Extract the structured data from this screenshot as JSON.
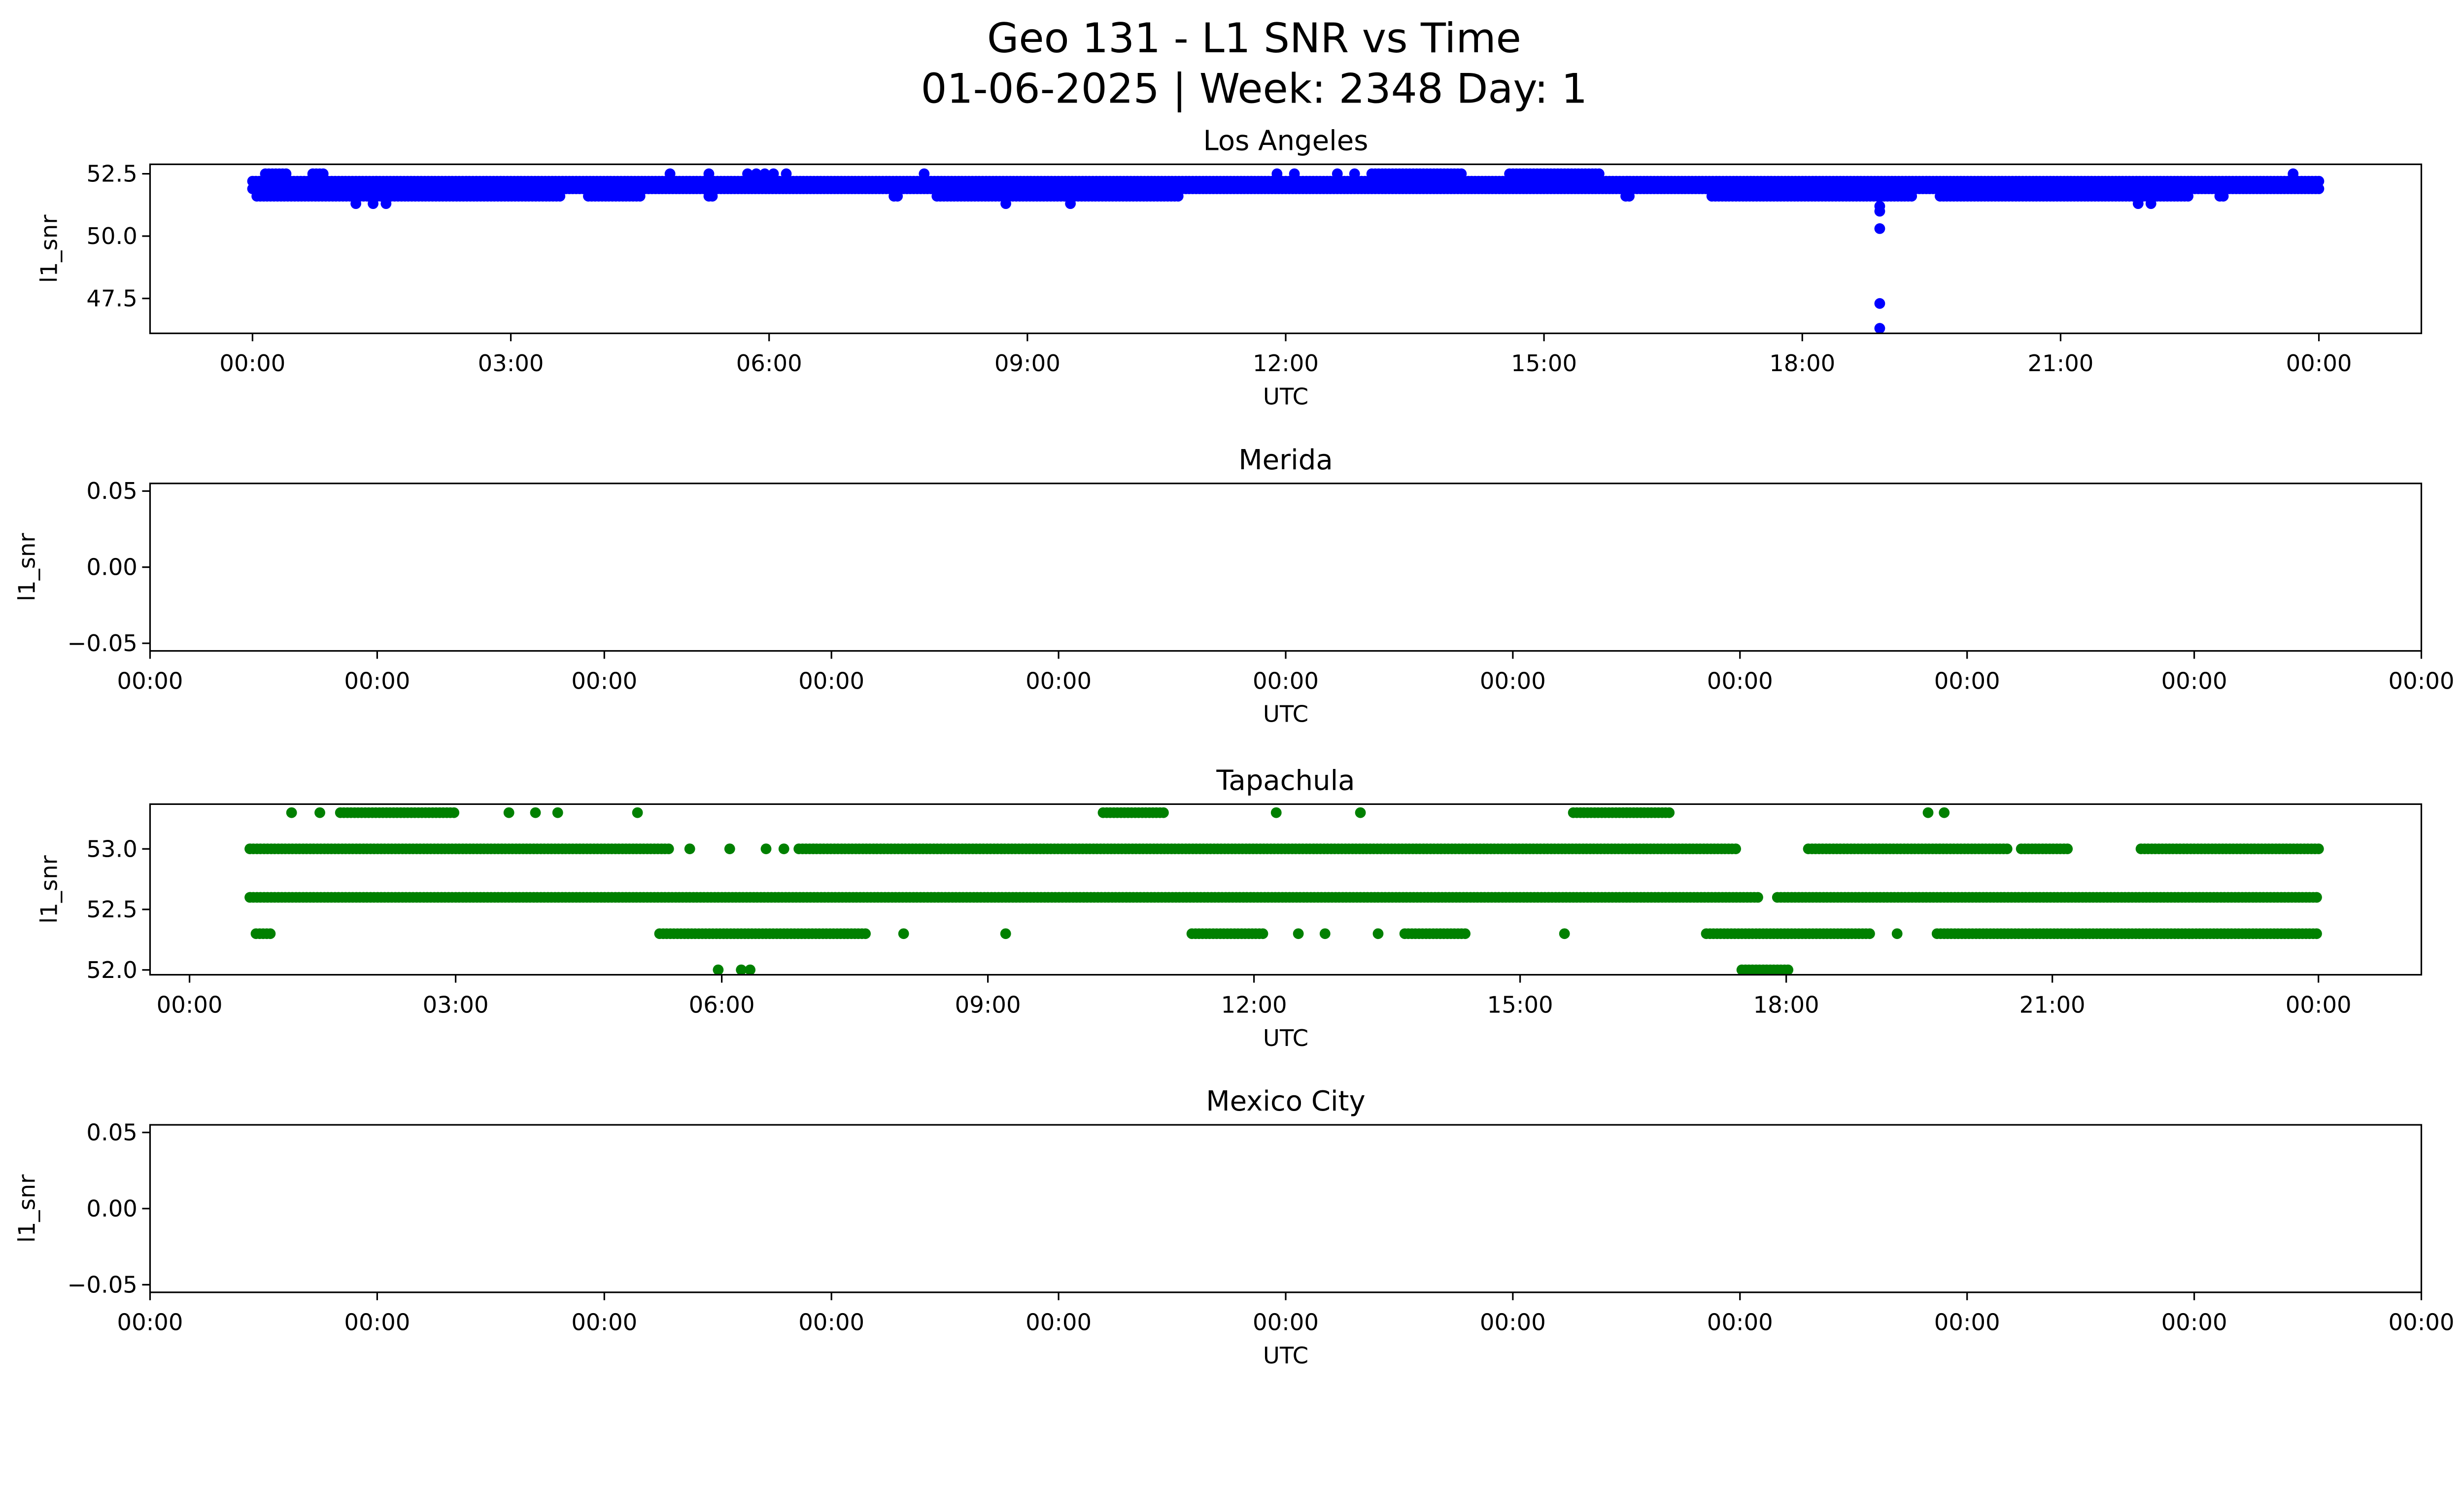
{
  "suptitle_line1": "Geo 131 - L1 SNR vs Time",
  "suptitle_line2": "01-06-2025 | Week: 2348 Day: 1",
  "chart_data": [
    {
      "type": "scatter",
      "title": "Los Angeles",
      "xlabel": "UTC",
      "ylabel": "l1_snr",
      "color": "#0000ff",
      "xlim": [
        -1.19,
        25.19
      ],
      "ylim": [
        46.1,
        52.88
      ],
      "xticks": [
        {
          "v": 0,
          "label": "00:00"
        },
        {
          "v": 3,
          "label": "03:00"
        },
        {
          "v": 6,
          "label": "06:00"
        },
        {
          "v": 9,
          "label": "09:00"
        },
        {
          "v": 12,
          "label": "12:00"
        },
        {
          "v": 15,
          "label": "15:00"
        },
        {
          "v": 18,
          "label": "18:00"
        },
        {
          "v": 21,
          "label": "21:00"
        },
        {
          "v": 24,
          "label": "00:00"
        }
      ],
      "yticks": [
        {
          "v": 47.5,
          "label": "47.5"
        },
        {
          "v": 50.0,
          "label": "50.0"
        },
        {
          "v": 52.5,
          "label": "52.5"
        }
      ],
      "runs": [
        {
          "y": 52.2,
          "ranges": [
            [
              0.0,
              24.0
            ]
          ]
        },
        {
          "y": 51.9,
          "ranges": [
            [
              0.0,
              24.0
            ]
          ]
        },
        {
          "y": 51.6,
          "ranges": [
            [
              0.05,
              3.6
            ],
            [
              3.9,
              4.5
            ],
            [
              5.3,
              5.35
            ],
            [
              7.45,
              7.5
            ],
            [
              7.95,
              10.75
            ],
            [
              15.95,
              16.0
            ],
            [
              16.95,
              19.3
            ],
            [
              19.6,
              22.5
            ],
            [
              22.85,
              22.9
            ]
          ]
        },
        {
          "y": 52.5,
          "ranges": [
            [
              0.15,
              0.4
            ],
            [
              0.7,
              0.85
            ],
            [
              13.0,
              14.05
            ],
            [
              14.6,
              15.65
            ]
          ]
        }
      ],
      "points": [
        [
          1.2,
          51.3
        ],
        [
          1.4,
          51.3
        ],
        [
          1.55,
          51.3
        ],
        [
          8.75,
          51.3
        ],
        [
          9.5,
          51.3
        ],
        [
          21.9,
          51.3
        ],
        [
          22.05,
          51.3
        ],
        [
          4.85,
          52.5
        ],
        [
          5.3,
          52.5
        ],
        [
          5.75,
          52.5
        ],
        [
          5.85,
          52.5
        ],
        [
          5.95,
          52.5
        ],
        [
          6.05,
          52.5
        ],
        [
          6.2,
          52.5
        ],
        [
          7.8,
          52.5
        ],
        [
          11.9,
          52.5
        ],
        [
          12.1,
          52.5
        ],
        [
          12.6,
          52.5
        ],
        [
          12.8,
          52.5
        ],
        [
          23.7,
          52.5
        ],
        [
          18.9,
          51.0
        ],
        [
          18.9,
          51.2
        ],
        [
          18.9,
          50.3
        ],
        [
          18.9,
          47.3
        ],
        [
          18.9,
          46.3
        ]
      ]
    },
    {
      "type": "scatter",
      "title": "Merida",
      "xlabel": "UTC",
      "ylabel": "l1_snr",
      "color": "#0000ff",
      "xlim": [
        0,
        10
      ],
      "ylim": [
        -0.055,
        0.055
      ],
      "xticks": [
        {
          "v": 0,
          "label": "00:00"
        },
        {
          "v": 1,
          "label": "00:00"
        },
        {
          "v": 2,
          "label": "00:00"
        },
        {
          "v": 3,
          "label": "00:00"
        },
        {
          "v": 4,
          "label": "00:00"
        },
        {
          "v": 5,
          "label": "00:00"
        },
        {
          "v": 6,
          "label": "00:00"
        },
        {
          "v": 7,
          "label": "00:00"
        },
        {
          "v": 8,
          "label": "00:00"
        },
        {
          "v": 9,
          "label": "00:00"
        },
        {
          "v": 10,
          "label": "00:00"
        }
      ],
      "yticks": [
        {
          "v": -0.05,
          "label": "−0.05"
        },
        {
          "v": 0.0,
          "label": "0.00"
        },
        {
          "v": 0.05,
          "label": "0.05"
        }
      ],
      "runs": [],
      "points": []
    },
    {
      "type": "scatter",
      "title": "Tapachula",
      "xlabel": "UTC",
      "ylabel": "l1_snr",
      "color": "#008000",
      "xlim": [
        -0.445,
        25.16
      ],
      "ylim": [
        51.96,
        53.37
      ],
      "xticks": [
        {
          "v": 0,
          "label": "00:00"
        },
        {
          "v": 3,
          "label": "03:00"
        },
        {
          "v": 6,
          "label": "06:00"
        },
        {
          "v": 9,
          "label": "09:00"
        },
        {
          "v": 12,
          "label": "12:00"
        },
        {
          "v": 15,
          "label": "15:00"
        },
        {
          "v": 18,
          "label": "18:00"
        },
        {
          "v": 21,
          "label": "21:00"
        },
        {
          "v": 24,
          "label": "00:00"
        }
      ],
      "yticks": [
        {
          "v": 52.0,
          "label": "52.0"
        },
        {
          "v": 52.5,
          "label": "52.5"
        },
        {
          "v": 53.0,
          "label": "53.0"
        }
      ],
      "runs": [
        {
          "y": 53.0,
          "ranges": [
            [
              0.68,
              5.43
            ],
            [
              6.87,
              17.45
            ],
            [
              18.25,
              20.5
            ],
            [
              20.65,
              21.2
            ],
            [
              22.0,
              24.0
            ]
          ]
        },
        {
          "y": 52.6,
          "ranges": [
            [
              0.68,
              17.7
            ],
            [
              17.9,
              24.0
            ]
          ]
        },
        {
          "y": 52.3,
          "ranges": [
            [
              0.75,
              0.93
            ],
            [
              5.3,
              7.65
            ],
            [
              11.3,
              12.1
            ],
            [
              13.7,
              14.4
            ],
            [
              17.1,
              18.95
            ],
            [
              19.7,
              24.0
            ]
          ]
        },
        {
          "y": 53.3,
          "ranges": [
            [
              1.7,
              3.0
            ],
            [
              10.3,
              11.0
            ],
            [
              15.6,
              16.7
            ]
          ]
        },
        {
          "y": 52.0,
          "ranges": [
            [
              17.5,
              18.05
            ]
          ]
        }
      ],
      "points": [
        [
          5.64,
          53.0
        ],
        [
          6.09,
          53.0
        ],
        [
          6.5,
          53.0
        ],
        [
          6.7,
          53.0
        ],
        [
          8.05,
          52.3
        ],
        [
          9.2,
          52.3
        ],
        [
          12.5,
          52.3
        ],
        [
          12.8,
          52.3
        ],
        [
          13.4,
          52.3
        ],
        [
          15.5,
          52.3
        ],
        [
          19.25,
          52.3
        ],
        [
          1.15,
          53.3
        ],
        [
          1.47,
          53.3
        ],
        [
          3.6,
          53.3
        ],
        [
          3.9,
          53.3
        ],
        [
          4.15,
          53.3
        ],
        [
          5.05,
          53.3
        ],
        [
          12.25,
          53.3
        ],
        [
          13.2,
          53.3
        ],
        [
          19.6,
          53.3
        ],
        [
          19.78,
          53.3
        ],
        [
          5.96,
          52.0
        ],
        [
          6.22,
          52.0
        ],
        [
          6.32,
          52.0
        ]
      ]
    },
    {
      "type": "scatter",
      "title": "Mexico City",
      "xlabel": "UTC",
      "ylabel": "l1_snr",
      "color": "#0000ff",
      "xlim": [
        0,
        10
      ],
      "ylim": [
        -0.055,
        0.055
      ],
      "xticks": [
        {
          "v": 0,
          "label": "00:00"
        },
        {
          "v": 1,
          "label": "00:00"
        },
        {
          "v": 2,
          "label": "00:00"
        },
        {
          "v": 3,
          "label": "00:00"
        },
        {
          "v": 4,
          "label": "00:00"
        },
        {
          "v": 5,
          "label": "00:00"
        },
        {
          "v": 6,
          "label": "00:00"
        },
        {
          "v": 7,
          "label": "00:00"
        },
        {
          "v": 8,
          "label": "00:00"
        },
        {
          "v": 9,
          "label": "00:00"
        },
        {
          "v": 10,
          "label": "00:00"
        }
      ],
      "yticks": [
        {
          "v": -0.05,
          "label": "−0.05"
        },
        {
          "v": 0.0,
          "label": "0.00"
        },
        {
          "v": 0.05,
          "label": "0.05"
        }
      ],
      "runs": [],
      "points": []
    }
  ]
}
